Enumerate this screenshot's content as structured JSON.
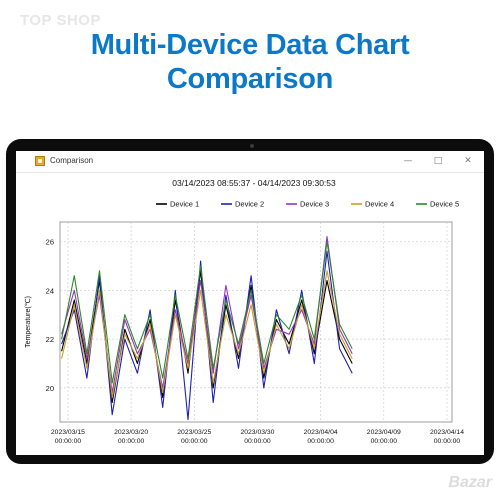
{
  "watermark": "TOP SHOP",
  "watermark_bottom": "Bazar",
  "headline": {
    "line1": "Multi-Device Data Chart",
    "line2": "Comparison"
  },
  "window": {
    "title": "Comparison",
    "buttons": [
      "minimize-icon",
      "maximize-icon",
      "close-icon"
    ]
  },
  "chart_data": {
    "type": "line",
    "title": "03/14/2023 08:55:37 - 04/14/2023 09:30:53",
    "ylabel": "Temperature(℃)",
    "xlabel": "",
    "ylim": [
      18.6,
      26.8
    ],
    "y_ticks": [
      "20",
      "22",
      "24",
      "26"
    ],
    "x_ticks": [
      {
        "date": "2023/03/15",
        "time": "00:00:00"
      },
      {
        "date": "2023/03/20",
        "time": "00:00:00"
      },
      {
        "date": "2023/03/25",
        "time": "00:00:00"
      },
      {
        "date": "2023/03/30",
        "time": "00:00:00"
      },
      {
        "date": "2023/04/04",
        "time": "00:00:00"
      },
      {
        "date": "2023/04/09",
        "time": "00:00:00"
      },
      {
        "date": "2023/04/14",
        "time": "00:00:00"
      }
    ],
    "xlim": [
      "2023-03-14 08:55:37",
      "2023-04-14 09:30:53"
    ],
    "grid": true,
    "legend_position": "top-right",
    "series": [
      {
        "name": "Device 1",
        "color": "#000000",
        "x": [
          "2023-03-14",
          "2023-03-15",
          "2023-03-16",
          "2023-03-17",
          "2023-03-18",
          "2023-03-19",
          "2023-03-20",
          "2023-03-21",
          "2023-03-22",
          "2023-03-23",
          "2023-03-24",
          "2023-03-25",
          "2023-03-26",
          "2023-03-27",
          "2023-03-28",
          "2023-03-29",
          "2023-03-30",
          "2023-03-31",
          "2023-04-01",
          "2023-04-02",
          "2023-04-03",
          "2023-04-04",
          "2023-04-05",
          "2023-04-06"
        ],
        "y": [
          21.5,
          23.6,
          21.0,
          24.4,
          19.4,
          22.4,
          21.0,
          22.8,
          19.6,
          23.6,
          20.6,
          24.8,
          20.0,
          23.4,
          21.2,
          24.2,
          20.4,
          22.8,
          21.8,
          23.6,
          21.4,
          24.4,
          22.0,
          21.0
        ]
      },
      {
        "name": "Device 2",
        "color": "#1f1fb8",
        "x": [
          "2023-03-14",
          "2023-03-15",
          "2023-03-16",
          "2023-03-17",
          "2023-03-18",
          "2023-03-19",
          "2023-03-20",
          "2023-03-21",
          "2023-03-22",
          "2023-03-23",
          "2023-03-24",
          "2023-03-25",
          "2023-03-26",
          "2023-03-27",
          "2023-03-28",
          "2023-03-29",
          "2023-03-30",
          "2023-03-31",
          "2023-04-01",
          "2023-04-02",
          "2023-04-03",
          "2023-04-04",
          "2023-04-05",
          "2023-04-06"
        ],
        "y": [
          21.8,
          23.2,
          20.4,
          24.6,
          18.9,
          22.0,
          20.6,
          23.2,
          19.2,
          24.0,
          18.7,
          25.2,
          19.4,
          23.8,
          20.8,
          24.6,
          20.0,
          23.2,
          21.4,
          24.0,
          21.0,
          25.6,
          21.6,
          20.6
        ]
      },
      {
        "name": "Device 3",
        "color": "#9b30c8",
        "x": [
          "2023-03-14",
          "2023-03-15",
          "2023-03-16",
          "2023-03-17",
          "2023-03-18",
          "2023-03-19",
          "2023-03-20",
          "2023-03-21",
          "2023-03-22",
          "2023-03-23",
          "2023-03-24",
          "2023-03-25",
          "2023-03-26",
          "2023-03-27",
          "2023-03-28",
          "2023-03-29",
          "2023-03-30",
          "2023-03-31",
          "2023-04-01",
          "2023-04-02",
          "2023-04-03",
          "2023-04-04",
          "2023-04-05",
          "2023-04-06"
        ],
        "y": [
          22.2,
          24.0,
          21.2,
          23.8,
          19.8,
          22.8,
          21.4,
          22.4,
          20.0,
          23.2,
          21.0,
          24.4,
          20.6,
          24.2,
          21.6,
          23.8,
          20.8,
          22.4,
          22.2,
          23.2,
          21.8,
          26.2,
          22.4,
          21.4
        ]
      },
      {
        "name": "Device 4",
        "color": "#c8a020",
        "x": [
          "2023-03-14",
          "2023-03-15",
          "2023-03-16",
          "2023-03-17",
          "2023-03-18",
          "2023-03-19",
          "2023-03-20",
          "2023-03-21",
          "2023-03-22",
          "2023-03-23",
          "2023-03-24",
          "2023-03-25",
          "2023-03-26",
          "2023-03-27",
          "2023-03-28",
          "2023-03-29",
          "2023-03-30",
          "2023-03-31",
          "2023-04-01",
          "2023-04-02",
          "2023-04-03",
          "2023-04-04",
          "2023-04-05",
          "2023-04-06"
        ],
        "y": [
          21.2,
          23.4,
          20.8,
          24.0,
          19.6,
          22.2,
          21.2,
          22.6,
          19.8,
          23.0,
          20.8,
          24.0,
          20.2,
          23.0,
          21.4,
          23.4,
          20.6,
          22.6,
          21.6,
          23.4,
          21.6,
          24.8,
          22.2,
          21.2
        ]
      },
      {
        "name": "Device 5",
        "color": "#2a8a2a",
        "x": [
          "2023-03-14",
          "2023-03-15",
          "2023-03-16",
          "2023-03-17",
          "2023-03-18",
          "2023-03-19",
          "2023-03-20",
          "2023-03-21",
          "2023-03-22",
          "2023-03-23",
          "2023-03-24",
          "2023-03-25",
          "2023-03-26",
          "2023-03-27",
          "2023-03-28",
          "2023-03-29",
          "2023-03-30",
          "2023-03-31",
          "2023-04-01",
          "2023-04-02",
          "2023-04-03",
          "2023-04-04",
          "2023-04-05",
          "2023-04-06"
        ],
        "y": [
          22.0,
          24.6,
          21.4,
          24.8,
          20.2,
          23.0,
          21.6,
          23.0,
          20.4,
          23.8,
          21.2,
          25.0,
          20.8,
          23.6,
          21.8,
          24.0,
          21.0,
          23.0,
          22.4,
          23.8,
          22.0,
          26.0,
          22.6,
          21.6
        ]
      }
    ]
  }
}
